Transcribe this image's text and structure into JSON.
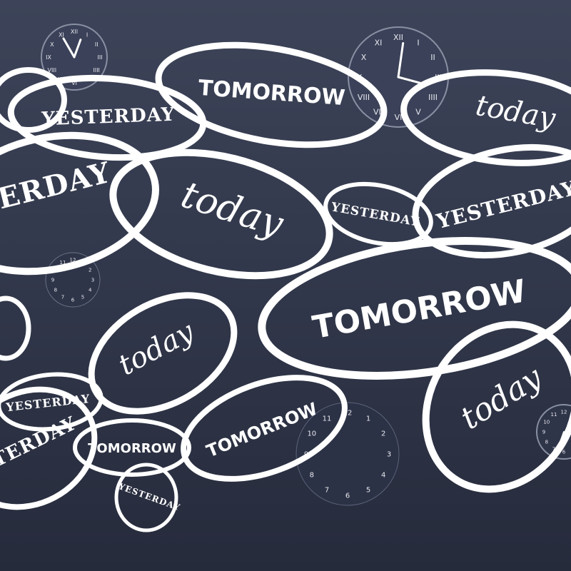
{
  "words": {
    "yesterday": "YESTERDAY",
    "tomorrow": "TOMORROW",
    "today": "today"
  },
  "clock_small_numbers": [
    "12",
    "1",
    "2",
    "3",
    "4",
    "5",
    "6",
    "7",
    "8",
    "9",
    "10",
    "11"
  ],
  "clock_roman": [
    "XII",
    "I",
    "II",
    "III",
    "IIII",
    "V",
    "VI",
    "VII",
    "VIII",
    "IX",
    "X",
    "XI"
  ],
  "colors": {
    "background_top": "#3b4257",
    "background_bottom": "#252a3c",
    "ink": "#ffffff"
  }
}
